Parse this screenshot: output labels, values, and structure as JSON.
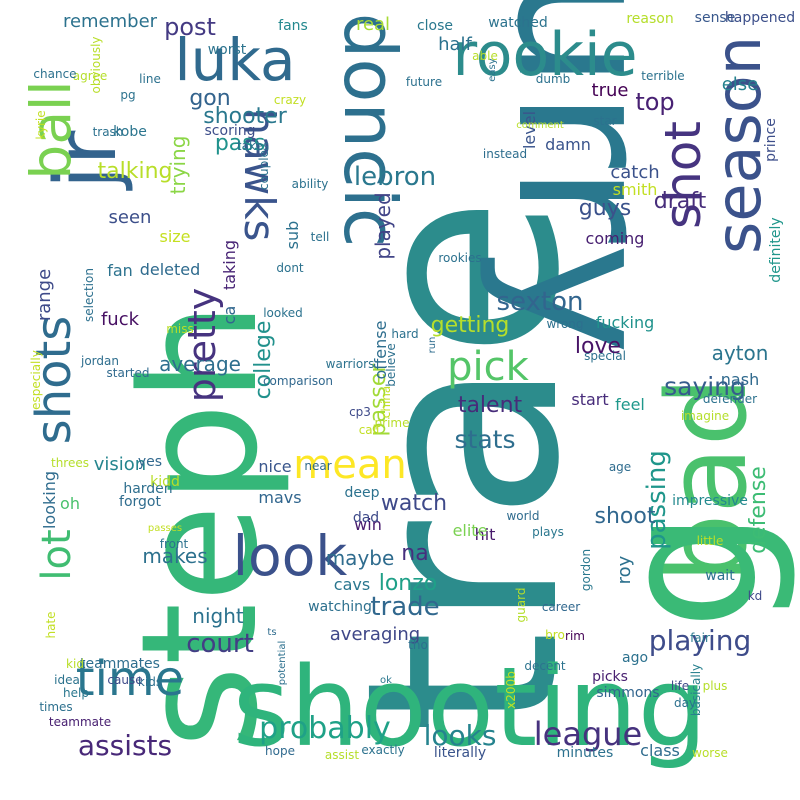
{
  "words": [
    {
      "text": "trae",
      "color": "#2c8c8c"
    },
    {
      "text": "curry",
      "color": "#2a788e"
    },
    {
      "text": "steph",
      "color": "#35b779"
    },
    {
      "text": "shooting",
      "color": "#2fb47c"
    },
    {
      "text": "bad",
      "color": "#4ac16d"
    },
    {
      "text": "g",
      "color": "#3aba76"
    },
    {
      "text": "doncic",
      "color": "#2d708e"
    },
    {
      "text": "jr",
      "color": "#33638d"
    },
    {
      "text": "season",
      "color": "#3b528b"
    },
    {
      "text": "rookie",
      "color": "#2c8c8c"
    },
    {
      "text": "luka",
      "color": "#306a8e"
    },
    {
      "text": "ball",
      "color": "#7ad151"
    },
    {
      "text": "shot",
      "color": "#463480"
    },
    {
      "text": "shots",
      "color": "#2f6c8e"
    },
    {
      "text": "hawks",
      "color": "#3a548c"
    },
    {
      "text": "time",
      "color": "#2a768e"
    },
    {
      "text": "look",
      "color": "#3b518b"
    },
    {
      "text": "mean",
      "color": "#fde725"
    },
    {
      "text": "lot",
      "color": "#40bd72"
    },
    {
      "text": "pick",
      "color": "#54c568"
    },
    {
      "text": "probably",
      "color": "#1fa187"
    },
    {
      "text": "league",
      "color": "#46327e"
    },
    {
      "text": "assists",
      "color": "#482878"
    },
    {
      "text": "pretty",
      "color": "#46337f"
    },
    {
      "text": "playing",
      "color": "#3e4c8a"
    },
    {
      "text": "looks",
      "color": "#25838e"
    },
    {
      "text": "lebron",
      "color": "#2a788e"
    },
    {
      "text": "saying",
      "color": "#365c8d"
    },
    {
      "text": "sexton",
      "color": "#32658e"
    },
    {
      "text": "stats",
      "color": "#2e6e8e"
    },
    {
      "text": "trade",
      "color": "#31688e"
    },
    {
      "text": "passing",
      "color": "#1f968b"
    },
    {
      "text": "court",
      "color": "#433e85"
    },
    {
      "text": "defense",
      "color": "#3dbc74"
    },
    {
      "text": "watch",
      "color": "#3e4989"
    },
    {
      "text": "top",
      "color": "#482173"
    },
    {
      "text": "post",
      "color": "#443a83"
    },
    {
      "text": "pass",
      "color": "#20928c"
    },
    {
      "text": "talent",
      "color": "#472c7a"
    },
    {
      "text": "getting",
      "color": "#b5de2b"
    },
    {
      "text": "college",
      "color": "#21918c"
    },
    {
      "text": "passer",
      "color": "#a2da37"
    },
    {
      "text": "draft",
      "color": "#472d7b"
    },
    {
      "text": "love",
      "color": "#481467"
    },
    {
      "text": "shooter",
      "color": "#2a788e"
    },
    {
      "text": "talking",
      "color": "#b8de29"
    },
    {
      "text": "played",
      "color": "#414487"
    },
    {
      "text": "lonzo",
      "color": "#1fa088"
    },
    {
      "text": "na",
      "color": "#46307e"
    },
    {
      "text": "gon",
      "color": "#33638d"
    },
    {
      "text": "trying",
      "color": "#8bd646"
    },
    {
      "text": "guys",
      "color": "#3b528b"
    },
    {
      "text": "shoot",
      "color": "#31678e"
    },
    {
      "text": "makes",
      "color": "#2d718e"
    },
    {
      "text": "night",
      "color": "#2c728e"
    },
    {
      "text": "maybe",
      "color": "#2f6c8e"
    },
    {
      "text": "average",
      "color": "#2e6f8e"
    },
    {
      "text": "ayton",
      "color": "#2b758e"
    },
    {
      "text": "range",
      "color": "#3e4a89"
    },
    {
      "text": "seen",
      "color": "#3c4f8a"
    },
    {
      "text": "fuck",
      "color": "#471063"
    },
    {
      "text": "averaging",
      "color": "#3f4788"
    },
    {
      "text": "catch",
      "color": "#3b528b"
    },
    {
      "text": "vision",
      "color": "#25858e"
    },
    {
      "text": "cavs",
      "color": "#2a768e"
    },
    {
      "text": "roy",
      "color": "#2d718e"
    },
    {
      "text": "remember",
      "color": "#2c728e"
    },
    {
      "text": "half",
      "color": "#2c728e"
    },
    {
      "text": "real",
      "color": "#a8db34"
    },
    {
      "text": "true",
      "color": "#440154"
    },
    {
      "text": "else",
      "color": "#26828e"
    },
    {
      "text": "damn",
      "color": "#3a548c"
    },
    {
      "text": "level",
      "color": "#3a548c"
    },
    {
      "text": "smith",
      "color": "#c2df23"
    },
    {
      "text": "coming",
      "color": "#482071"
    },
    {
      "text": "fan",
      "color": "#2c728e"
    },
    {
      "text": "size",
      "color": "#c5e021"
    },
    {
      "text": "deleted",
      "color": "#2f6b8e"
    },
    {
      "text": "taking",
      "color": "#482475"
    },
    {
      "text": "ca",
      "color": "#31668e"
    },
    {
      "text": "sub",
      "color": "#2c718e"
    },
    {
      "text": "fucking",
      "color": "#20928c"
    },
    {
      "text": "nash",
      "color": "#306a8e"
    },
    {
      "text": "start",
      "color": "#472c7a"
    },
    {
      "text": "feel",
      "color": "#1f988b"
    },
    {
      "text": "offense",
      "color": "#2e6e8e"
    },
    {
      "text": "win",
      "color": "#481b6d"
    },
    {
      "text": "nice",
      "color": "#39568c"
    },
    {
      "text": "mavs",
      "color": "#31668e"
    },
    {
      "text": "hit",
      "color": "#481a6c"
    },
    {
      "text": "elite",
      "color": "#7ad151"
    },
    {
      "text": "looking",
      "color": "#2f6c8e"
    },
    {
      "text": "oh",
      "color": "#4ac16d"
    },
    {
      "text": "definitely",
      "color": "#1f968b"
    },
    {
      "text": "prince",
      "color": "#3d4e8a"
    },
    {
      "text": "fans",
      "color": "#23888e"
    },
    {
      "text": "worst",
      "color": "#2c738e"
    },
    {
      "text": "kobe",
      "color": "#2b758e"
    },
    {
      "text": "scoring",
      "color": "#3d4e8a"
    },
    {
      "text": "close",
      "color": "#2a788e"
    },
    {
      "text": "watched",
      "color": "#2c738e"
    },
    {
      "text": "reason",
      "color": "#b5de2b"
    },
    {
      "text": "sense",
      "color": "#38588c"
    },
    {
      "text": "happened",
      "color": "#3c4f8a"
    },
    {
      "text": "harden",
      "color": "#2e6f8e"
    },
    {
      "text": "forgot",
      "color": "#2f6c8e"
    },
    {
      "text": "yes",
      "color": "#31688e"
    },
    {
      "text": "kidd",
      "color": "#b8de29"
    },
    {
      "text": "deep",
      "color": "#2c728e"
    },
    {
      "text": "dad",
      "color": "#3e4a89"
    },
    {
      "text": "plays",
      "color": "#2a778e"
    },
    {
      "text": "world",
      "color": "#2f6b8e"
    },
    {
      "text": "age",
      "color": "#2f6c8e"
    },
    {
      "text": "impressive",
      "color": "#23898e"
    },
    {
      "text": "gordon",
      "color": "#2a788e"
    },
    {
      "text": "wait",
      "color": "#2c718e"
    },
    {
      "text": "little",
      "color": "#bddf26"
    },
    {
      "text": "kd",
      "color": "#3e4a89"
    },
    {
      "text": "watching",
      "color": "#2d708e"
    },
    {
      "text": "guard",
      "color": "#b5de2b"
    },
    {
      "text": "career",
      "color": "#31688e"
    },
    {
      "text": "bro",
      "color": "#c2df23"
    },
    {
      "text": "rim",
      "color": "#440154"
    },
    {
      "text": "fair",
      "color": "#2a788e"
    },
    {
      "text": "ago",
      "color": "#2c718e"
    },
    {
      "text": "picks",
      "color": "#482071"
    },
    {
      "text": "simmons",
      "color": "#32658e"
    },
    {
      "text": "life",
      "color": "#3e4a89"
    },
    {
      "text": "day",
      "color": "#2d708e"
    },
    {
      "text": "basically",
      "color": "#27808e"
    },
    {
      "text": "plus",
      "color": "#b5de2b"
    },
    {
      "text": "tho",
      "color": "#2d708e"
    },
    {
      "text": "x200b",
      "color": "#c2df23"
    },
    {
      "text": "teammates",
      "color": "#2e6e8e"
    },
    {
      "text": "kid",
      "color": "#b8de29"
    },
    {
      "text": "times",
      "color": "#2d708e"
    },
    {
      "text": "hate",
      "color": "#c2df23"
    },
    {
      "text": "help",
      "color": "#2a778e"
    },
    {
      "text": "potential",
      "color": "#2d708e"
    },
    {
      "text": "teammate",
      "color": "#482071"
    },
    {
      "text": "hope",
      "color": "#306a8e"
    },
    {
      "text": "assist",
      "color": "#b5de2b"
    },
    {
      "text": "exactly",
      "color": "#2c728e"
    },
    {
      "text": "literally",
      "color": "#3a548c"
    },
    {
      "text": "minutes",
      "color": "#2c718e"
    },
    {
      "text": "class",
      "color": "#2f6c8e"
    },
    {
      "text": "worse",
      "color": "#b8de29"
    },
    {
      "text": "ok",
      "color": "#2a788e"
    },
    {
      "text": "decent",
      "color": "#2c738e"
    },
    {
      "text": "ts",
      "color": "#2f6c8e"
    },
    {
      "text": "kids",
      "color": "#2d708e"
    },
    {
      "text": "cause",
      "color": "#3e4a89"
    },
    {
      "text": "idea",
      "color": "#2c738e"
    },
    {
      "text": "passes",
      "color": "#c2df23"
    },
    {
      "text": "front",
      "color": "#2c718e"
    },
    {
      "text": "threes",
      "color": "#b5de2b"
    },
    {
      "text": "near",
      "color": "#306a8e"
    },
    {
      "text": "prime",
      "color": "#b8de29"
    },
    {
      "text": "call",
      "color": "#c2df23"
    },
    {
      "text": "cp3",
      "color": "#3e4a89"
    },
    {
      "text": "believe",
      "color": "#2d708e"
    },
    {
      "text": "warriors",
      "color": "#2c728e"
    },
    {
      "text": "comparison",
      "color": "#31688e"
    },
    {
      "text": "china",
      "color": "#c2df23"
    },
    {
      "text": "especially",
      "color": "#c2df23"
    },
    {
      "text": "jordan",
      "color": "#2e6e8e"
    },
    {
      "text": "started",
      "color": "#306a8e"
    },
    {
      "text": "selection",
      "color": "#2d708e"
    },
    {
      "text": "miss",
      "color": "#b8de29"
    },
    {
      "text": "looked",
      "color": "#2c728e"
    },
    {
      "text": "hard",
      "color": "#2c718e"
    },
    {
      "text": "wrong",
      "color": "#2d708e"
    },
    {
      "text": "special",
      "color": "#2c718e"
    },
    {
      "text": "defender",
      "color": "#2c728e"
    },
    {
      "text": "imagine",
      "color": "#b5de2b"
    },
    {
      "text": "run",
      "color": "#2f6c8e"
    },
    {
      "text": "rookies",
      "color": "#2c718e"
    },
    {
      "text": "dont",
      "color": "#2c728e"
    },
    {
      "text": "tell",
      "color": "#2c718e"
    },
    {
      "text": "ability",
      "color": "#2c728e"
    },
    {
      "text": "couple",
      "color": "#2c718e"
    },
    {
      "text": "instead",
      "color": "#2e6e8e"
    },
    {
      "text": "comment",
      "color": "#b8de29"
    },
    {
      "text": "star",
      "color": "#2c728e"
    },
    {
      "text": "takes",
      "color": "#2c718e"
    },
    {
      "text": "crazy",
      "color": "#c2df23"
    },
    {
      "text": "line",
      "color": "#2c718e"
    },
    {
      "text": "pg",
      "color": "#2c728e"
    },
    {
      "text": "trash",
      "color": "#2c718e"
    },
    {
      "text": "agree",
      "color": "#b5de2b"
    },
    {
      "text": "kyrie",
      "color": "#c2df23"
    },
    {
      "text": "chance",
      "color": "#2c718e"
    },
    {
      "text": "obviously",
      "color": "#b8de29"
    },
    {
      "text": "future",
      "color": "#2c718e"
    },
    {
      "text": "able",
      "color": "#b8de29"
    },
    {
      "text": "easy",
      "color": "#2c728e"
    },
    {
      "text": "dumb",
      "color": "#2c718e"
    },
    {
      "text": "terrible",
      "color": "#2c728e"
    },
    {
      "text": "amazing",
      "color": "#2c718e"
    },
    {
      "text": "hes",
      "color": "#2c728e"
    }
  ]
}
